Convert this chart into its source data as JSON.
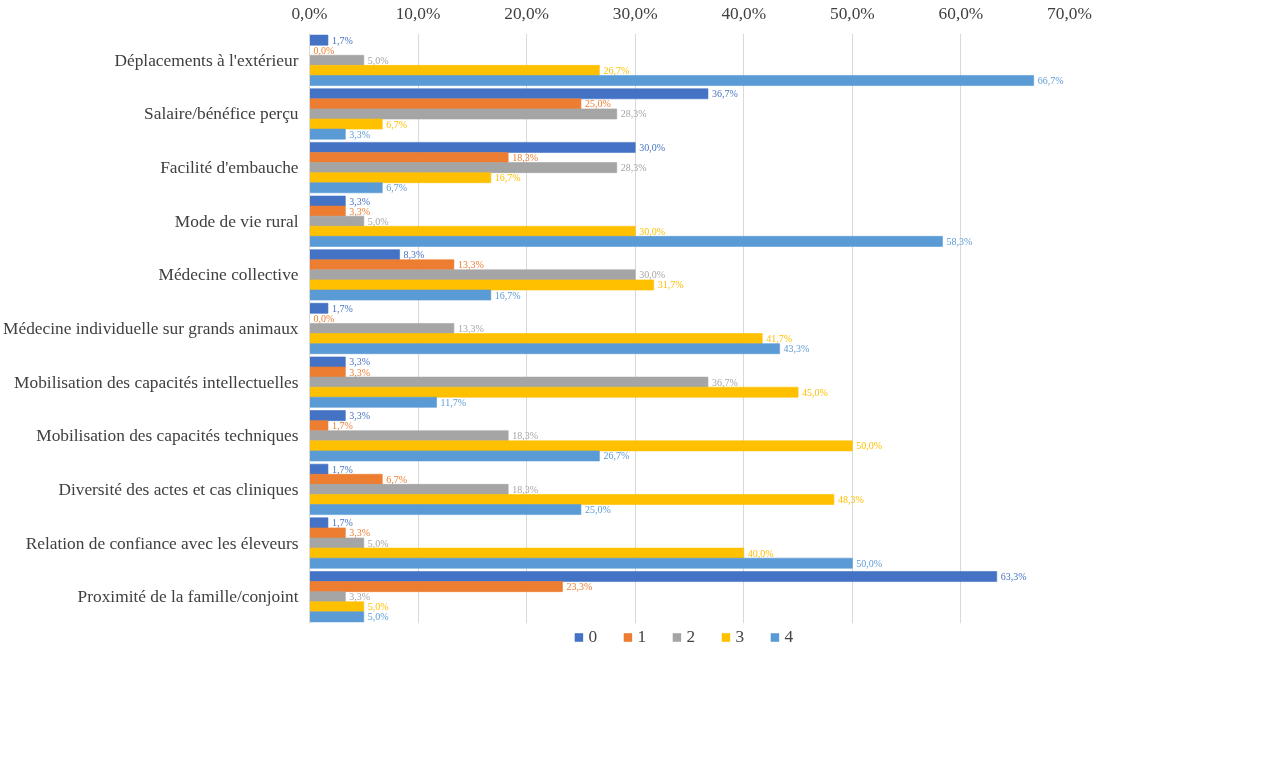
{
  "chart_data": {
    "type": "bar",
    "orientation": "horizontal",
    "categories": [
      "Déplacements à l'extérieur",
      "Salaire/bénéfice perçu",
      "Facilité d'embauche",
      "Mode de vie rural",
      "Médecine collective",
      "Médecine individuelle sur grands animaux",
      "Mobilisation des capacités intellectuelles",
      "Mobilisation des capacités techniques",
      "Diversité des actes et cas cliniques",
      "Relation de confiance avec les éleveurs",
      "Proximité de la famille/conjoint"
    ],
    "series": [
      {
        "name": "0",
        "color": "#4472c4",
        "values": [
          1.7,
          36.7,
          30.0,
          3.3,
          8.3,
          1.7,
          3.3,
          3.3,
          1.7,
          1.7,
          63.3
        ],
        "value_labels": [
          "1,7%",
          "36,7%",
          "30,0%",
          "3,3%",
          "8,3%",
          "1,7%",
          "3,3%",
          "3,3%",
          "1,7%",
          "1,7%",
          "63,3%"
        ]
      },
      {
        "name": "1",
        "color": "#ed7d31",
        "values": [
          0.0,
          25.0,
          18.3,
          3.3,
          13.3,
          0.0,
          3.3,
          1.7,
          6.7,
          3.3,
          23.3
        ],
        "value_labels": [
          "0,0%",
          "25,0%",
          "18,3%",
          "3,3%",
          "13,3%",
          "0,0%",
          "3,3%",
          "1,7%",
          "6,7%",
          "3,3%",
          "23,3%"
        ]
      },
      {
        "name": "2",
        "color": "#a5a5a5",
        "values": [
          5.0,
          28.3,
          28.3,
          5.0,
          30.0,
          13.3,
          36.7,
          18.3,
          18.3,
          5.0,
          3.3
        ],
        "value_labels": [
          "5,0%",
          "28,3%",
          "28,3%",
          "5,0%",
          "30,0%",
          "13,3%",
          "36,7%",
          "18,3%",
          "18,3%",
          "5,0%",
          "3,3%"
        ]
      },
      {
        "name": "3",
        "color": "#ffc000",
        "values": [
          26.7,
          6.7,
          16.7,
          30.0,
          31.7,
          41.7,
          45.0,
          50.0,
          48.3,
          40.0,
          5.0
        ],
        "value_labels": [
          "26,7%",
          "6,7%",
          "16,7%",
          "30,0%",
          "31,7%",
          "41,7%",
          "45,0%",
          "50,0%",
          "48,3%",
          "40,0%",
          "5,0%"
        ]
      },
      {
        "name": "4",
        "color": "#5b9bd5",
        "values": [
          66.7,
          3.3,
          6.7,
          58.3,
          16.7,
          43.3,
          11.7,
          26.7,
          25.0,
          50.0,
          5.0
        ],
        "value_labels": [
          "66,7%",
          "3,3%",
          "6,7%",
          "58,3%",
          "16,7%",
          "43,3%",
          "11,7%",
          "26,7%",
          "25,0%",
          "50,0%",
          "5,0%"
        ]
      }
    ],
    "xlim": [
      0,
      70
    ],
    "xticks": [
      {
        "value": 0,
        "label": "0,0%"
      },
      {
        "value": 10,
        "label": "10,0%"
      },
      {
        "value": 20,
        "label": "20,0%"
      },
      {
        "value": 30,
        "label": "30,0%"
      },
      {
        "value": 40,
        "label": "40,0%"
      },
      {
        "value": 50,
        "label": "50,0%"
      },
      {
        "value": 60,
        "label": "60,0%"
      },
      {
        "value": 70,
        "label": "70,0%"
      }
    ],
    "grid": "x",
    "legend": "bottom"
  }
}
